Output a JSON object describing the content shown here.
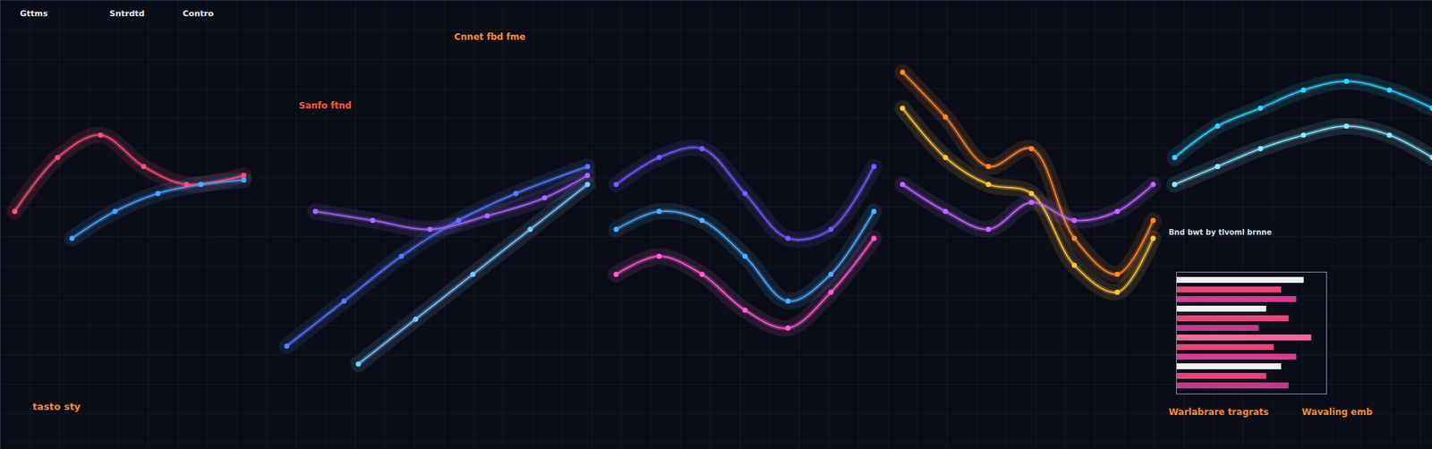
{
  "chart_data": [
    {
      "type": "line",
      "tick_labels": false,
      "xlim": [
        0,
        100
      ],
      "ylim": [
        0,
        100
      ],
      "series": [
        {
          "color": "#ff4f7b",
          "x": [
            1,
            4,
            7,
            10,
            13,
            17
          ],
          "values": [
            53,
            65,
            70,
            63,
            59,
            61
          ]
        },
        {
          "color": "#4aa8ff",
          "x": [
            5,
            8,
            11,
            14,
            17
          ],
          "values": [
            47,
            53,
            57,
            59,
            60
          ]
        },
        {
          "color": "#5b7bff",
          "x": [
            20,
            24,
            28,
            32,
            36,
            41
          ],
          "values": [
            23,
            33,
            43,
            51,
            57,
            63
          ]
        },
        {
          "color": "#a86bff",
          "x": [
            22,
            26,
            30,
            34,
            38,
            41
          ],
          "values": [
            53,
            51,
            49,
            52,
            56,
            61
          ]
        },
        {
          "color": "#7fc8ff",
          "x": [
            25,
            29,
            33,
            37,
            41
          ],
          "values": [
            19,
            29,
            39,
            49,
            59
          ]
        },
        {
          "color": "#4fb0ff",
          "x": [
            43,
            46,
            49,
            52,
            55,
            58,
            61
          ],
          "values": [
            49,
            53,
            51,
            43,
            33,
            39,
            53
          ]
        },
        {
          "color": "#7a5cff",
          "x": [
            43,
            46,
            49,
            52,
            55,
            58,
            61
          ],
          "values": [
            59,
            65,
            67,
            57,
            47,
            49,
            63
          ]
        },
        {
          "color": "#ff5fd0",
          "x": [
            43,
            46,
            49,
            52,
            55,
            58,
            61
          ],
          "values": [
            39,
            43,
            39,
            31,
            27,
            35,
            47
          ]
        },
        {
          "color": "#ff8a2a",
          "x": [
            63,
            66,
            69,
            72,
            75,
            78,
            80.5
          ],
          "values": [
            84,
            74,
            63,
            67,
            47,
            39,
            51
          ]
        },
        {
          "color": "#ffc640",
          "x": [
            63,
            66,
            69,
            72,
            75,
            78,
            80.5
          ],
          "values": [
            76,
            65,
            59,
            57,
            41,
            35,
            47
          ]
        },
        {
          "color": "#c06bff",
          "x": [
            63,
            66,
            69,
            72,
            75,
            78,
            80.5
          ],
          "values": [
            59,
            53,
            49,
            55,
            51,
            53,
            59
          ]
        },
        {
          "color": "#35d6ff",
          "x": [
            82,
            85,
            88,
            91,
            94,
            97,
            100
          ],
          "values": [
            65,
            72,
            76,
            80,
            82,
            80,
            76
          ]
        },
        {
          "color": "#8fe8ff",
          "x": [
            82,
            85,
            88,
            91,
            94,
            97,
            100
          ],
          "values": [
            59,
            63,
            67,
            70,
            72,
            70,
            65
          ]
        }
      ]
    },
    {
      "type": "bar",
      "orientation": "horizontal",
      "tick_labels": false,
      "xlim": [
        0,
        100
      ],
      "categories": [
        null,
        null,
        null,
        null,
        null,
        null,
        null,
        null,
        null,
        null,
        null,
        null
      ],
      "values": [
        85,
        70,
        80,
        60,
        75,
        55,
        90,
        65,
        80,
        70,
        60,
        75
      ],
      "colors": [
        "#f0f0f5",
        "#e8457a",
        "#d63c8f",
        "#f0f0f5",
        "#e8457a",
        "#c23a8c",
        "#f06a9a",
        "#e8457a",
        "#d63c8f",
        "#f0f0f5",
        "#e8457a",
        "#c23a8c"
      ]
    }
  ],
  "texts": [
    "Gttms",
    "Sntrdtd",
    "Contro",
    "Sanfo ftnd",
    "Cnnet fbd fme",
    "tasto sty",
    "Warlabrare tragrats",
    "Wavaling emb",
    "Bnd bwt by tlvoml brnne"
  ]
}
